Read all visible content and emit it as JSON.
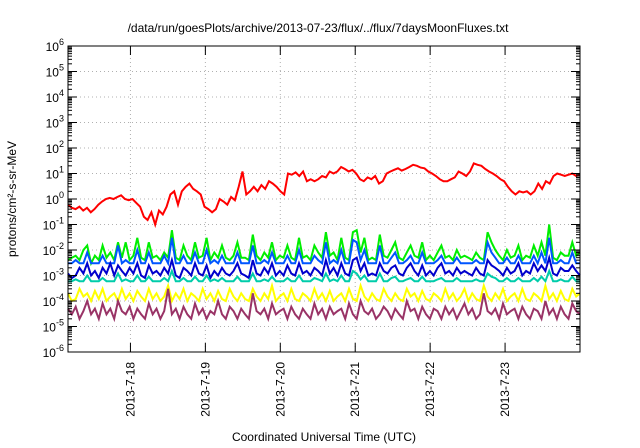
{
  "chart_data": {
    "type": "line",
    "title": "/data/run/goesPlots/archive/2013-07-23/flux/../flux/7daysMoonFluxes.txt",
    "xlabel": "Coordinated Universal Time (UTC)",
    "ylabel": "protons/cm²-s-sr-MeV",
    "x_start": "2013-07-17 04:00",
    "x_end": "2013-07-24 00:00",
    "x_ticks": [
      "2013-7-18",
      "2013-7-19",
      "2013-7-20",
      "2013-7-21",
      "2013-7-22",
      "2013-7-23"
    ],
    "y_scale": "log",
    "ylim": [
      1e-06,
      1000000.0
    ],
    "y_ticks": [
      {
        "base": "10",
        "exp": "-6"
      },
      {
        "base": "10",
        "exp": "-5"
      },
      {
        "base": "10",
        "exp": "-4"
      },
      {
        "base": "10",
        "exp": "-3"
      },
      {
        "base": "10",
        "exp": "-2"
      },
      {
        "base": "10",
        "exp": "-1"
      },
      {
        "base": "10",
        "exp": "0"
      },
      {
        "base": "10",
        "exp": "1"
      },
      {
        "base": "10",
        "exp": "2"
      },
      {
        "base": "10",
        "exp": "3"
      },
      {
        "base": "10",
        "exp": "4"
      },
      {
        "base": "10",
        "exp": "5"
      },
      {
        "base": "10",
        "exp": "6"
      }
    ],
    "grid": true,
    "series": [
      {
        "color": "#ff0000",
        "values": [
          0.6,
          0.45,
          0.4,
          0.5,
          0.35,
          0.45,
          0.3,
          0.4,
          0.6,
          0.8,
          1.0,
          1.1,
          1.0,
          1.2,
          1.4,
          1.0,
          0.9,
          1.0,
          0.7,
          0.5,
          0.2,
          0.15,
          0.3,
          0.1,
          0.35,
          0.25,
          0.5,
          1.5,
          2.0,
          0.6,
          2.0,
          3.0,
          4.0,
          2.5,
          2.0,
          1.5,
          0.5,
          0.4,
          0.3,
          0.4,
          1.0,
          0.8,
          0.6,
          1.2,
          0.9,
          3.0,
          12,
          1.5,
          2.0,
          3.0,
          2.0,
          3.5,
          2.5,
          5.0,
          4.0,
          3.0,
          2.0,
          1.5,
          10,
          9.0,
          11,
          8.0,
          12,
          5.0,
          6.0,
          5.0,
          6.0,
          8.0,
          7.0,
          12,
          10,
          12,
          18,
          15,
          12,
          14,
          10,
          6.0,
          5.0,
          7.0,
          6.0,
          8.0,
          4.0,
          5.0,
          10,
          12,
          14,
          16,
          13,
          15,
          18,
          22,
          20,
          17,
          16,
          12,
          10,
          8.0,
          6.0,
          5.0,
          5.0,
          6.0,
          7.0,
          12,
          10,
          8.0,
          12,
          25,
          22,
          20,
          15,
          12,
          10,
          8.0,
          6.0,
          5.0,
          3.0,
          2.0,
          1.5,
          2.0,
          1.8,
          2.0,
          1.5,
          2.0,
          4.0,
          2.5,
          5.0,
          4.0,
          8.0,
          10,
          9.0,
          8.0,
          9.0,
          10,
          8.0,
          9.0
        ]
      },
      {
        "color": "#00ee00",
        "values": [
          0.004,
          0.005,
          0.006,
          0.004,
          0.01,
          0.015,
          0.003,
          0.006,
          0.004,
          0.015,
          0.005,
          0.008,
          0.004,
          0.02,
          0.005,
          0.02,
          0.004,
          0.006,
          0.03,
          0.005,
          0.004,
          0.02,
          0.005,
          0.006,
          0.004,
          0.008,
          0.005,
          0.06,
          0.005,
          0.004,
          0.015,
          0.006,
          0.004,
          0.02,
          0.005,
          0.006,
          0.03,
          0.004,
          0.008,
          0.005,
          0.015,
          0.005,
          0.004,
          0.006,
          0.02,
          0.005,
          0.005,
          0.004,
          0.04,
          0.006,
          0.004,
          0.008,
          0.005,
          0.02,
          0.004,
          0.006,
          0.005,
          0.015,
          0.005,
          0.004,
          0.03,
          0.005,
          0.006,
          0.004,
          0.015,
          0.008,
          0.005,
          0.05,
          0.006,
          0.008,
          0.004,
          0.03,
          0.005,
          0.004,
          0.05,
          0.06,
          0.008,
          0.03,
          0.004,
          0.005,
          0.004,
          0.04,
          0.006,
          0.005,
          0.01,
          0.02,
          0.005,
          0.004,
          0.008,
          0.015,
          0.006,
          0.005,
          0.02,
          0.004,
          0.006,
          0.004,
          0.008,
          0.015,
          0.005,
          0.006,
          0.004,
          0.01,
          0.005,
          0.006,
          0.005,
          0.004,
          0.008,
          0.005,
          0.004,
          0.05,
          0.02,
          0.01,
          0.006,
          0.004,
          0.01,
          0.005,
          0.006,
          0.015,
          0.004,
          0.006,
          0.005,
          0.015,
          0.006,
          0.02,
          0.006,
          0.1,
          0.005,
          0.004,
          0.008,
          0.006,
          0.006,
          0.02,
          0.006,
          0.008
        ]
      },
      {
        "color": "#0055ff",
        "values": [
          0.003,
          0.003,
          0.004,
          0.003,
          0.003,
          0.008,
          0.003,
          0.003,
          0.003,
          0.006,
          0.003,
          0.003,
          0.003,
          0.015,
          0.003,
          0.004,
          0.003,
          0.003,
          0.01,
          0.003,
          0.003,
          0.008,
          0.003,
          0.003,
          0.003,
          0.006,
          0.003,
          0.03,
          0.003,
          0.003,
          0.006,
          0.003,
          0.003,
          0.008,
          0.003,
          0.003,
          0.01,
          0.003,
          0.004,
          0.003,
          0.006,
          0.003,
          0.003,
          0.003,
          0.008,
          0.003,
          0.003,
          0.003,
          0.015,
          0.003,
          0.003,
          0.004,
          0.003,
          0.008,
          0.003,
          0.003,
          0.003,
          0.006,
          0.003,
          0.003,
          0.01,
          0.003,
          0.003,
          0.003,
          0.006,
          0.004,
          0.003,
          0.02,
          0.003,
          0.004,
          0.003,
          0.01,
          0.003,
          0.003,
          0.025,
          0.02,
          0.004,
          0.01,
          0.003,
          0.003,
          0.003,
          0.015,
          0.003,
          0.003,
          0.005,
          0.008,
          0.003,
          0.003,
          0.004,
          0.006,
          0.003,
          0.003,
          0.008,
          0.003,
          0.003,
          0.003,
          0.004,
          0.006,
          0.003,
          0.003,
          0.003,
          0.005,
          0.003,
          0.003,
          0.003,
          0.003,
          0.004,
          0.003,
          0.003,
          0.02,
          0.008,
          0.005,
          0.003,
          0.003,
          0.005,
          0.003,
          0.003,
          0.006,
          0.003,
          0.003,
          0.003,
          0.006,
          0.003,
          0.008,
          0.003,
          0.03,
          0.003,
          0.003,
          0.004,
          0.003,
          0.003,
          0.008,
          0.003,
          0.003
        ]
      },
      {
        "color": "#0000cc",
        "values": [
          0.0012,
          0.0008,
          0.001,
          0.002,
          0.0012,
          0.003,
          0.001,
          0.0015,
          0.0008,
          0.002,
          0.0012,
          0.003,
          0.001,
          0.0025,
          0.0015,
          0.001,
          0.002,
          0.0012,
          0.003,
          0.001,
          0.0008,
          0.0025,
          0.0012,
          0.0015,
          0.001,
          0.002,
          0.0012,
          0.004,
          0.001,
          0.0008,
          0.002,
          0.0015,
          0.001,
          0.003,
          0.0012,
          0.001,
          0.0025,
          0.0008,
          0.0015,
          0.001,
          0.002,
          0.0012,
          0.001,
          0.0015,
          0.003,
          0.0012,
          0.001,
          0.0008,
          0.004,
          0.0012,
          0.001,
          0.002,
          0.0012,
          0.003,
          0.001,
          0.0015,
          0.001,
          0.0025,
          0.0012,
          0.001,
          0.003,
          0.0012,
          0.0015,
          0.001,
          0.002,
          0.0015,
          0.001,
          0.004,
          0.0012,
          0.002,
          0.001,
          0.003,
          0.0012,
          0.001,
          0.004,
          0.005,
          0.0015,
          0.003,
          0.001,
          0.0012,
          0.001,
          0.003,
          0.0015,
          0.0012,
          0.002,
          0.0025,
          0.0012,
          0.001,
          0.002,
          0.003,
          0.0015,
          0.001,
          0.0025,
          0.001,
          0.0015,
          0.001,
          0.002,
          0.003,
          0.0012,
          0.0015,
          0.001,
          0.002,
          0.0012,
          0.0015,
          0.0012,
          0.001,
          0.002,
          0.0012,
          0.001,
          0.004,
          0.0025,
          0.002,
          0.0015,
          0.001,
          0.002,
          0.0012,
          0.0015,
          0.003,
          0.001,
          0.0015,
          0.0012,
          0.003,
          0.0015,
          0.0025,
          0.0015,
          0.005,
          0.0012,
          0.001,
          0.002,
          0.0015,
          0.0015,
          0.0025,
          0.0015,
          0.001
        ]
      },
      {
        "color": "#00ccaa",
        "values": [
          0.0006,
          0.0006,
          0.0007,
          0.0006,
          0.0006,
          0.001,
          0.0006,
          0.0006,
          0.0006,
          0.0008,
          0.0006,
          0.0006,
          0.0006,
          0.0012,
          0.0006,
          0.0007,
          0.0006,
          0.0006,
          0.001,
          0.0006,
          0.0006,
          0.0009,
          0.0006,
          0.0006,
          0.0006,
          0.0008,
          0.0006,
          0.0015,
          0.0006,
          0.0006,
          0.0008,
          0.0006,
          0.0006,
          0.0009,
          0.0006,
          0.0006,
          0.001,
          0.0006,
          0.0007,
          0.0006,
          0.0008,
          0.0006,
          0.0006,
          0.0006,
          0.0009,
          0.0006,
          0.0006,
          0.0006,
          0.0012,
          0.0006,
          0.0006,
          0.0007,
          0.0006,
          0.0009,
          0.0006,
          0.0006,
          0.0006,
          0.0008,
          0.0006,
          0.0006,
          0.001,
          0.0006,
          0.0006,
          0.0006,
          0.0008,
          0.0007,
          0.0006,
          0.0012,
          0.0006,
          0.0007,
          0.0006,
          0.001,
          0.0006,
          0.0006,
          0.0015,
          0.0012,
          0.0007,
          0.001,
          0.0006,
          0.0006,
          0.0006,
          0.0012,
          0.0006,
          0.0006,
          0.0008,
          0.0009,
          0.0006,
          0.0006,
          0.0007,
          0.0008,
          0.0006,
          0.0006,
          0.0009,
          0.0006,
          0.0006,
          0.0006,
          0.0007,
          0.0008,
          0.0006,
          0.0006,
          0.0006,
          0.0008,
          0.0006,
          0.0006,
          0.0006,
          0.0006,
          0.0007,
          0.0006,
          0.0006,
          0.0012,
          0.0009,
          0.0008,
          0.0006,
          0.0006,
          0.0008,
          0.0006,
          0.0006,
          0.0008,
          0.0006,
          0.0006,
          0.0006,
          0.0008,
          0.0006,
          0.0009,
          0.0006,
          0.0015,
          0.0006,
          0.0006,
          0.0007,
          0.0006,
          0.0006,
          0.0009,
          0.0006,
          0.0006
        ]
      },
      {
        "color": "#ffff00",
        "values": [
          0.0002,
          0.0001,
          0.00012,
          0.0003,
          0.00015,
          0.0002,
          0.0001,
          0.00025,
          0.00012,
          0.0003,
          0.0001,
          0.00015,
          0.0002,
          0.0001,
          0.0003,
          0.00012,
          0.0002,
          0.0001,
          0.00025,
          0.00015,
          0.0001,
          0.0003,
          0.00012,
          0.0002,
          0.0001,
          0.00015,
          0.0004,
          0.0001,
          0.0002,
          0.00012,
          0.0003,
          0.0001,
          0.0002,
          0.00015,
          0.0001,
          0.0003,
          0.00012,
          0.0002,
          0.0001,
          0.00025,
          0.00012,
          0.0001,
          0.0003,
          0.00015,
          0.0001,
          0.0002,
          0.00012,
          0.0001,
          0.0003,
          0.00015,
          0.0001,
          0.0002,
          0.00012,
          0.0004,
          0.0001,
          0.00015,
          0.0002,
          0.0001,
          0.0003,
          0.00012,
          0.0001,
          0.0002,
          0.00015,
          0.0001,
          0.0003,
          0.00012,
          0.0002,
          0.0001,
          0.00025,
          0.0001,
          0.00015,
          0.0002,
          0.0001,
          0.0003,
          0.00012,
          0.0001,
          0.0004,
          0.00015,
          0.0001,
          0.0002,
          0.00012,
          0.0001,
          0.0003,
          0.00015,
          0.0001,
          0.0002,
          0.00012,
          0.0001,
          0.0003,
          0.00015,
          0.0002,
          0.0001,
          0.00025,
          0.00012,
          0.0001,
          0.0002,
          0.00015,
          0.0001,
          0.0003,
          0.00012,
          0.0002,
          0.0001,
          0.00015,
          0.0003,
          0.0001,
          0.0002,
          0.00012,
          0.0001,
          0.0004,
          0.00015,
          0.0001,
          0.0002,
          0.00012,
          0.0003,
          0.0001,
          0.00015,
          0.0002,
          0.0001,
          0.0003,
          0.00012,
          0.0001,
          0.0002,
          0.00015,
          0.0001,
          0.0004,
          0.00012,
          0.0002,
          0.0001,
          0.00025,
          0.00012,
          0.0001,
          0.0003,
          0.00015,
          0.0002
        ]
      },
      {
        "color": "#993366",
        "values": [
          5e-05,
          3e-05,
          6e-05,
          2e-05,
          4e-05,
          0.0001,
          3e-05,
          5e-05,
          2e-05,
          8e-05,
          3e-05,
          5e-05,
          2e-05,
          0.0001,
          4e-05,
          3e-05,
          6e-05,
          2e-05,
          5e-05,
          3e-05,
          2e-05,
          8e-05,
          3e-05,
          5e-05,
          2e-05,
          4e-05,
          0.0003,
          3e-05,
          5e-05,
          2e-05,
          6e-05,
          3e-05,
          2e-05,
          8e-05,
          3e-05,
          5e-05,
          2e-05,
          4e-05,
          3e-05,
          0.0001,
          3e-05,
          2e-05,
          6e-05,
          4e-05,
          2e-05,
          5e-05,
          3e-05,
          2e-05,
          0.0002,
          4e-05,
          3e-05,
          5e-05,
          2e-05,
          8e-05,
          3e-05,
          4e-05,
          5e-05,
          2e-05,
          6e-05,
          3e-05,
          2e-05,
          5e-05,
          3e-05,
          2e-05,
          8e-05,
          3e-05,
          5e-05,
          2e-05,
          6e-05,
          3e-05,
          4e-05,
          5e-05,
          2e-05,
          8e-05,
          3e-05,
          2e-05,
          0.0001,
          4e-05,
          3e-05,
          5e-05,
          2e-05,
          3e-05,
          6e-05,
          4e-05,
          2e-05,
          5e-05,
          3e-05,
          2e-05,
          0.0001,
          4e-05,
          5e-05,
          2e-05,
          6e-05,
          3e-05,
          2e-05,
          5e-05,
          4e-05,
          2e-05,
          6e-05,
          3e-05,
          5e-05,
          2e-05,
          4e-05,
          8e-05,
          3e-05,
          5e-05,
          2e-05,
          3e-05,
          0.0002,
          4e-05,
          3e-05,
          5e-05,
          2e-05,
          8e-05,
          3e-05,
          4e-05,
          5e-05,
          2e-05,
          6e-05,
          3e-05,
          2e-05,
          5e-05,
          4e-05,
          2e-05,
          0.0001,
          3e-05,
          5e-05,
          2e-05,
          6e-05,
          3e-05,
          2e-05,
          8e-05,
          4e-05,
          3e-05
        ]
      }
    ]
  }
}
